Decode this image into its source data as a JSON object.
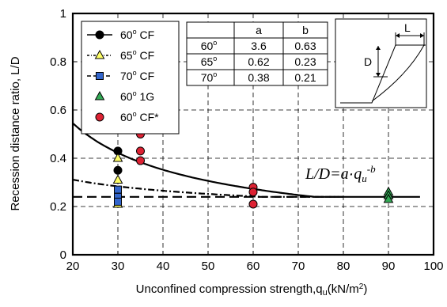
{
  "chart_data": {
    "type": "scatter",
    "xlabel": "Unconfined compression strength,q",
    "xlabel_sub": "u",
    "xlabel_unit": "(kN/m",
    "xlabel_unit_sup": "2",
    "xlabel_close": ")",
    "ylabel": "Recession distance ratio, L/D",
    "xlim": [
      20,
      100
    ],
    "ylim": [
      0,
      1
    ],
    "x_ticks": [
      "20",
      "30",
      "40",
      "50",
      "60",
      "70",
      "80",
      "90",
      "100"
    ],
    "y_ticks": [
      "0",
      "0.2",
      "0.4",
      "0.6",
      "0.8",
      "1"
    ],
    "grid": true,
    "legend_position": "top-left",
    "series": [
      {
        "name": "60",
        "name_sup": "o",
        "name_suffix": " CF",
        "line": "solid",
        "marker": "circle",
        "marker_color": "#000000",
        "x": [
          30,
          30
        ],
        "y": [
          0.43,
          0.35
        ]
      },
      {
        "name": "65",
        "name_sup": "o",
        "name_suffix": " CF",
        "line": "dashdot",
        "marker": "triangle",
        "marker_color": "#ffff66",
        "x": [
          30,
          30,
          30
        ],
        "y": [
          0.4,
          0.31,
          0.21
        ]
      },
      {
        "name": "70",
        "name_sup": "o",
        "name_suffix": " CF",
        "line": "dashed",
        "marker": "square",
        "marker_color": "#3366cc",
        "x": [
          30,
          30,
          30
        ],
        "y": [
          0.27,
          0.24,
          0.22
        ]
      },
      {
        "name": "60",
        "name_sup": "o",
        "name_suffix": " 1G",
        "line": "none",
        "marker": "triangle",
        "marker_color": "#33aa55",
        "x": [
          90,
          90,
          90
        ],
        "y": [
          0.26,
          0.245,
          0.23
        ]
      },
      {
        "name": "60",
        "name_sup": "o",
        "name_suffix": " CF*",
        "line": "none",
        "marker": "circle",
        "marker_color": "#dd2233",
        "x": [
          35,
          35,
          35,
          60,
          60,
          60
        ],
        "y": [
          0.5,
          0.43,
          0.39,
          0.28,
          0.26,
          0.21
        ]
      }
    ],
    "fit_table": {
      "headers": [
        "",
        "a",
        "b"
      ],
      "rows": [
        {
          "label": "60",
          "label_sup": "o",
          "a": "3.6",
          "b": "0.63"
        },
        {
          "label": "65",
          "label_sup": "o",
          "a": "0.62",
          "b": "0.23"
        },
        {
          "label": "70",
          "label_sup": "o",
          "a": "0.38",
          "b": "0.21"
        }
      ]
    },
    "fit_curves": [
      {
        "series": "60° CF",
        "line": "solid",
        "params": {
          "a": 3.6,
          "b": 0.63
        },
        "x_from": 20,
        "x_to": 97,
        "floor": 0.24
      },
      {
        "series": "65° CF",
        "line": "dashdot",
        "params": {
          "a": 0.62,
          "b": 0.23
        },
        "x_from": 20,
        "x_to": 80,
        "floor": 0.24
      },
      {
        "series": "70° CF",
        "line": "dashed",
        "params": {
          "a": 0.38,
          "b": 0.21
        },
        "x_from": 20,
        "x_to": 80,
        "floor": 0.24
      }
    ],
    "equation": {
      "lhs": "L/D=",
      "a": "a",
      "dot": "·",
      "q": "q",
      "q_sub": "u",
      "exp": "-b"
    },
    "inset": {
      "labels": [
        "L",
        "D"
      ]
    }
  }
}
